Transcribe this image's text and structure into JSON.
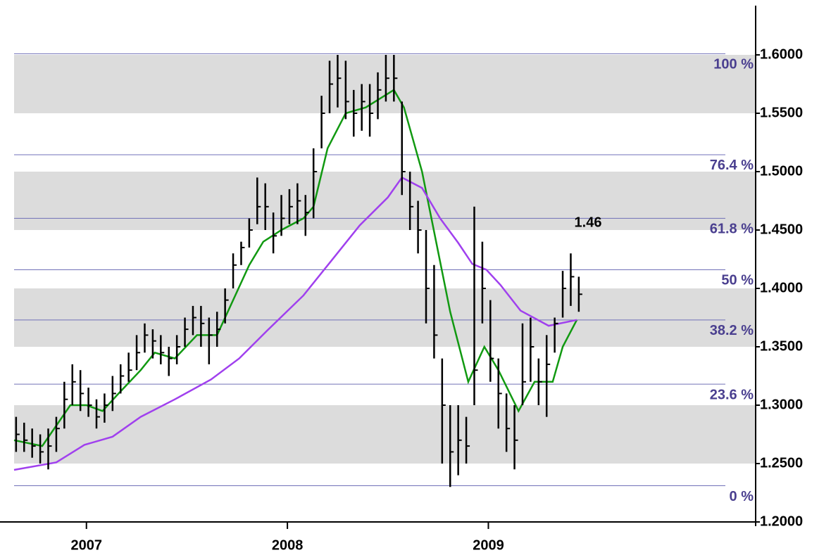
{
  "chart_data": {
    "type": "ohlc",
    "xlim": [
      2006.64,
      2010.33
    ],
    "xticks": [
      2007,
      2008,
      2009
    ],
    "ylim": [
      1.2,
      1.647
    ],
    "yticks": [
      {
        "value": 1.2,
        "label": "1.2000"
      },
      {
        "value": 1.25,
        "label": "1.2500"
      },
      {
        "value": 1.3,
        "label": "1.3000"
      },
      {
        "value": 1.35,
        "label": "1.3500"
      },
      {
        "value": 1.4,
        "label": "1.4000"
      },
      {
        "value": 1.45,
        "label": "1.4500"
      },
      {
        "value": 1.5,
        "label": "1.5000"
      },
      {
        "value": 1.55,
        "label": "1.5500"
      },
      {
        "value": 1.6,
        "label": "1.6000"
      }
    ],
    "band_grid": true,
    "bar_color": "#000000",
    "x": [
      2006.65,
      2006.69,
      2006.73,
      2006.77,
      2006.81,
      2006.85,
      2006.89,
      2006.93,
      2006.97,
      2007.01,
      2007.05,
      2007.09,
      2007.13,
      2007.17,
      2007.21,
      2007.25,
      2007.29,
      2007.33,
      2007.37,
      2007.41,
      2007.45,
      2007.49,
      2007.53,
      2007.57,
      2007.61,
      2007.65,
      2007.69,
      2007.73,
      2007.77,
      2007.81,
      2007.85,
      2007.89,
      2007.93,
      2007.97,
      2008.01,
      2008.05,
      2008.09,
      2008.13,
      2008.17,
      2008.21,
      2008.25,
      2008.29,
      2008.33,
      2008.37,
      2008.41,
      2008.45,
      2008.49,
      2008.53,
      2008.57,
      2008.61,
      2008.65,
      2008.69,
      2008.73,
      2008.77,
      2008.81,
      2008.85,
      2008.89,
      2008.93,
      2008.97,
      2009.01,
      2009.05,
      2009.09,
      2009.13,
      2009.17,
      2009.21,
      2009.25,
      2009.29,
      2009.33,
      2009.37,
      2009.41,
      2009.45
    ],
    "high": [
      1.29,
      1.285,
      1.28,
      1.275,
      1.28,
      1.29,
      1.32,
      1.335,
      1.33,
      1.315,
      1.305,
      1.31,
      1.325,
      1.335,
      1.345,
      1.36,
      1.37,
      1.365,
      1.36,
      1.35,
      1.36,
      1.375,
      1.385,
      1.385,
      1.375,
      1.38,
      1.4,
      1.43,
      1.44,
      1.46,
      1.495,
      1.49,
      1.465,
      1.48,
      1.485,
      1.49,
      1.48,
      1.52,
      1.565,
      1.595,
      1.6,
      1.595,
      1.57,
      1.575,
      1.575,
      1.585,
      1.6,
      1.6,
      1.56,
      1.5,
      1.475,
      1.45,
      1.42,
      1.34,
      1.3,
      1.3,
      1.29,
      1.47,
      1.44,
      1.39,
      1.34,
      1.31,
      1.3,
      1.37,
      1.375,
      1.34,
      1.36,
      1.375,
      1.415,
      1.43,
      1.41
    ],
    "low": [
      1.26,
      1.26,
      1.255,
      1.25,
      1.245,
      1.26,
      1.28,
      1.3,
      1.295,
      1.29,
      1.28,
      1.285,
      1.295,
      1.31,
      1.32,
      1.33,
      1.345,
      1.34,
      1.335,
      1.325,
      1.335,
      1.35,
      1.36,
      1.35,
      1.335,
      1.35,
      1.37,
      1.4,
      1.42,
      1.435,
      1.455,
      1.45,
      1.43,
      1.445,
      1.455,
      1.455,
      1.445,
      1.46,
      1.52,
      1.55,
      1.555,
      1.545,
      1.53,
      1.535,
      1.53,
      1.545,
      1.56,
      1.56,
      1.48,
      1.45,
      1.43,
      1.37,
      1.34,
      1.25,
      1.23,
      1.24,
      1.25,
      1.3,
      1.37,
      1.32,
      1.28,
      1.26,
      1.245,
      1.3,
      1.32,
      1.3,
      1.29,
      1.345,
      1.375,
      1.385,
      1.38
    ],
    "close": [
      1.275,
      1.27,
      1.265,
      1.26,
      1.265,
      1.28,
      1.305,
      1.32,
      1.31,
      1.3,
      1.29,
      1.3,
      1.31,
      1.325,
      1.33,
      1.345,
      1.36,
      1.355,
      1.345,
      1.34,
      1.35,
      1.365,
      1.375,
      1.37,
      1.36,
      1.365,
      1.39,
      1.42,
      1.435,
      1.45,
      1.47,
      1.47,
      1.445,
      1.46,
      1.47,
      1.475,
      1.465,
      1.5,
      1.55,
      1.575,
      1.58,
      1.56,
      1.55,
      1.56,
      1.55,
      1.57,
      1.58,
      1.58,
      1.5,
      1.47,
      1.45,
      1.4,
      1.36,
      1.3,
      1.26,
      1.27,
      1.265,
      1.33,
      1.4,
      1.34,
      1.31,
      1.28,
      1.27,
      1.32,
      1.35,
      1.32,
      1.335,
      1.37,
      1.4,
      1.41,
      1.395
    ],
    "lines": [
      {
        "color": "#119911",
        "x": [
          2006.64,
          2006.78,
          2006.92,
          2007.0,
          2007.08,
          2007.16,
          2007.27,
          2007.34,
          2007.44,
          2007.55,
          2007.65,
          2007.73,
          2007.81,
          2007.88,
          2007.97,
          2008.08,
          2008.13,
          2008.2,
          2008.29,
          2008.39,
          2008.53,
          2008.58,
          2008.67,
          2008.74,
          2008.81,
          2008.9,
          2008.98,
          2009.05,
          2009.15,
          2009.23,
          2009.32,
          2009.37,
          2009.44
        ],
        "values": [
          1.27,
          1.265,
          1.3,
          1.3,
          1.295,
          1.31,
          1.33,
          1.345,
          1.34,
          1.36,
          1.36,
          1.39,
          1.42,
          1.44,
          1.45,
          1.46,
          1.47,
          1.52,
          1.55,
          1.555,
          1.57,
          1.555,
          1.5,
          1.44,
          1.38,
          1.32,
          1.35,
          1.33,
          1.295,
          1.32,
          1.32,
          1.35,
          1.373
        ]
      },
      {
        "color": "#a040ee",
        "x": [
          2006.64,
          2006.85,
          2006.99,
          2007.13,
          2007.27,
          2007.44,
          2007.62,
          2007.76,
          2007.9,
          2008.08,
          2008.22,
          2008.36,
          2008.5,
          2008.57,
          2008.67,
          2008.76,
          2008.85,
          2008.92,
          2008.99,
          2009.06,
          2009.16,
          2009.3,
          2009.44
        ],
        "values": [
          1.2446,
          1.251,
          1.266,
          1.273,
          1.29,
          1.305,
          1.322,
          1.34,
          1.364,
          1.394,
          1.424,
          1.454,
          1.478,
          1.495,
          1.486,
          1.46,
          1.439,
          1.421,
          1.416,
          1.403,
          1.381,
          1.368,
          1.373
        ]
      }
    ],
    "fib_color": "#4a3f8f",
    "fib_levels": [
      {
        "value": 1.231,
        "label": "0 %"
      },
      {
        "value": 1.318,
        "label": "23.6 %"
      },
      {
        "value": 1.373,
        "label": "38.2 %"
      },
      {
        "value": 1.416,
        "label": "50 %"
      },
      {
        "value": 1.46,
        "label": "61.8 %"
      },
      {
        "value": 1.5145,
        "label": "76.4 %"
      },
      {
        "value": 1.601,
        "label": "100 %"
      }
    ],
    "annotations": [
      {
        "text": "1.46"
      }
    ]
  }
}
